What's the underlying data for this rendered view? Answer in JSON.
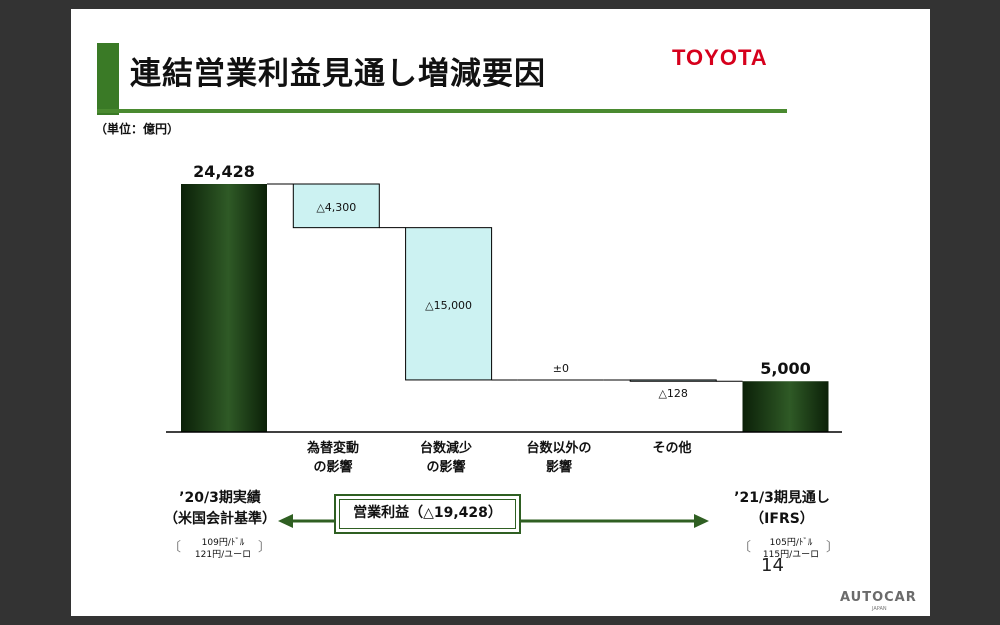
{
  "title": "連結営業利益見通し増減要因",
  "logo_text": "TOYOTA",
  "unit_label": "（単位：億円）",
  "page_number": "14",
  "watermark": "AUTOCAR",
  "watermark_sub": "JAPAN",
  "colors": {
    "title_accent": "#3a7a26",
    "logo_red": "#d6001c",
    "total_bar_dark": "#0b2008",
    "total_bar_light": "#2f5a26",
    "delta_bar_fill": "#ccf2f2",
    "arrow_green": "#2f5f22"
  },
  "chart_data": {
    "type": "waterfall",
    "title": "連結営業利益見通し増減要因",
    "unit": "（単位：億円）",
    "steps": [
      {
        "category": [
          "’20/3期実績",
          "（米国会計基準）"
        ],
        "kind": "total",
        "value": 24428,
        "label": "24,428"
      },
      {
        "category": [
          "為替変動",
          "の影響"
        ],
        "kind": "delta",
        "value": -4300,
        "label": "△4,300"
      },
      {
        "category": [
          "台数減少",
          "の影響"
        ],
        "kind": "delta",
        "value": -15000,
        "label": "△15,000"
      },
      {
        "category": [
          "台数以外の",
          "影響"
        ],
        "kind": "delta",
        "value": 0,
        "label": "±0"
      },
      {
        "category": [
          "その他"
        ],
        "kind": "delta",
        "value": -128,
        "label": "△128"
      },
      {
        "category": [
          "’21/3期見通し",
          "（IFRS）"
        ],
        "kind": "total",
        "value": 5000,
        "label": "5,000"
      }
    ],
    "operating_profit_change": {
      "label": "営業利益（△19,428）",
      "value": -19428
    }
  },
  "left_label": {
    "line1": "’20/3期実績",
    "line2": "（米国会計基準）"
  },
  "right_label": {
    "line1": "’21/3期見通し",
    "line2": "（IFRS）"
  },
  "left_rates": {
    "line1": "109円/ﾄﾞﾙ",
    "line2": "121円/ユーロ"
  },
  "right_rates": {
    "line1": "105円/ﾄﾞﾙ",
    "line2": "115円/ユーロ"
  },
  "bracket_open": "〔",
  "bracket_close": "〕"
}
